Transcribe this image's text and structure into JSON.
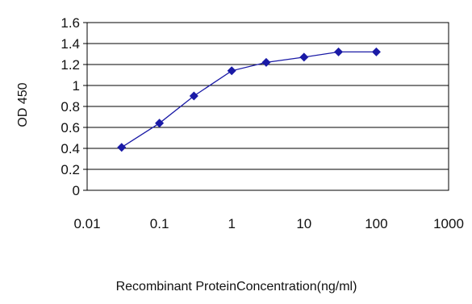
{
  "chart_data": {
    "type": "line",
    "xlabel": "Recombinant ProteinConcentration(ng/ml)",
    "ylabel": "OD 450",
    "x_scale": "log",
    "xlim": [
      0.01,
      1000
    ],
    "ylim": [
      0,
      1.6
    ],
    "x_ticks": [
      "0.01",
      "0.1",
      "1",
      "10",
      "100",
      "1000"
    ],
    "y_ticks": [
      "0",
      "0.2",
      "0.4",
      "0.6",
      "0.8",
      "1",
      "1.2",
      "1.4",
      "1.6"
    ],
    "grid": "horizontal",
    "legend": "none",
    "series": [
      {
        "x": [
          0.03,
          0.1,
          0.3,
          1,
          3,
          10,
          30,
          100
        ],
        "values": [
          0.41,
          0.64,
          0.9,
          1.14,
          1.22,
          1.27,
          1.32,
          1.32
        ]
      }
    ],
    "colors": {
      "series": "#1a1aa6",
      "grid": "#000000",
      "plot_background": "#ffffff"
    }
  }
}
